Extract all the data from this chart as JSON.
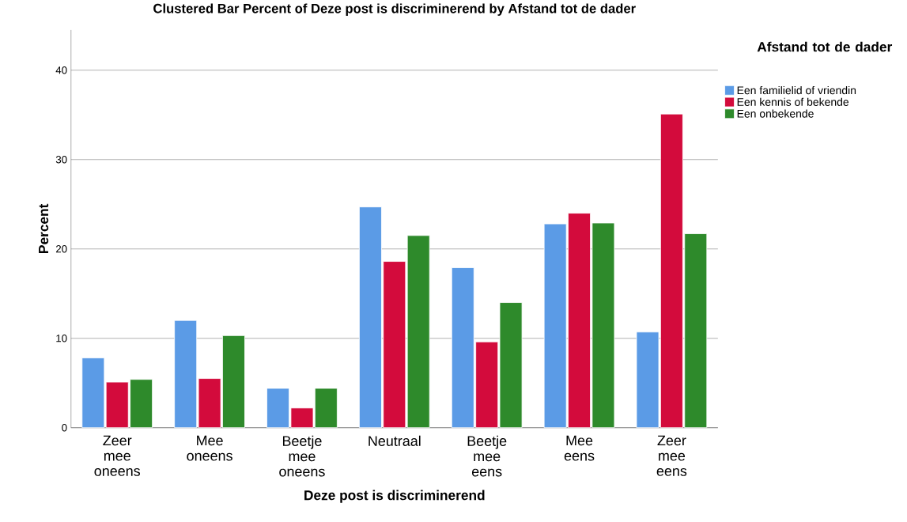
{
  "chart_data": {
    "type": "bar",
    "title": "Clustered Bar Percent of Deze post is discriminerend by Afstand tot de dader",
    "xlabel": "Deze post is discriminerend",
    "ylabel": "Percent",
    "legend_title": "Afstand tot de dader",
    "categories": [
      "Zeer mee oneens",
      "Mee oneens",
      "Beetje mee oneens",
      "Neutraal",
      "Beetje mee eens",
      "Mee eens",
      "Zeer mee eens"
    ],
    "series": [
      {
        "name": "Een familielid of vriendin",
        "color": "#5b9be6",
        "values": [
          7.8,
          12.0,
          4.4,
          24.7,
          17.9,
          22.8,
          10.7
        ]
      },
      {
        "name": "Een kennis of bekende",
        "color": "#d30b3c",
        "values": [
          5.1,
          5.5,
          2.2,
          18.6,
          9.6,
          24.0,
          35.1
        ]
      },
      {
        "name": "Een onbekende",
        "color": "#2e8a2b",
        "values": [
          5.4,
          10.3,
          4.4,
          21.5,
          14.0,
          22.9,
          21.7
        ]
      }
    ],
    "ylim": [
      0,
      44.5
    ],
    "yticks": [
      0,
      10,
      20,
      30,
      40
    ],
    "grid": "y",
    "legend": "top right"
  }
}
